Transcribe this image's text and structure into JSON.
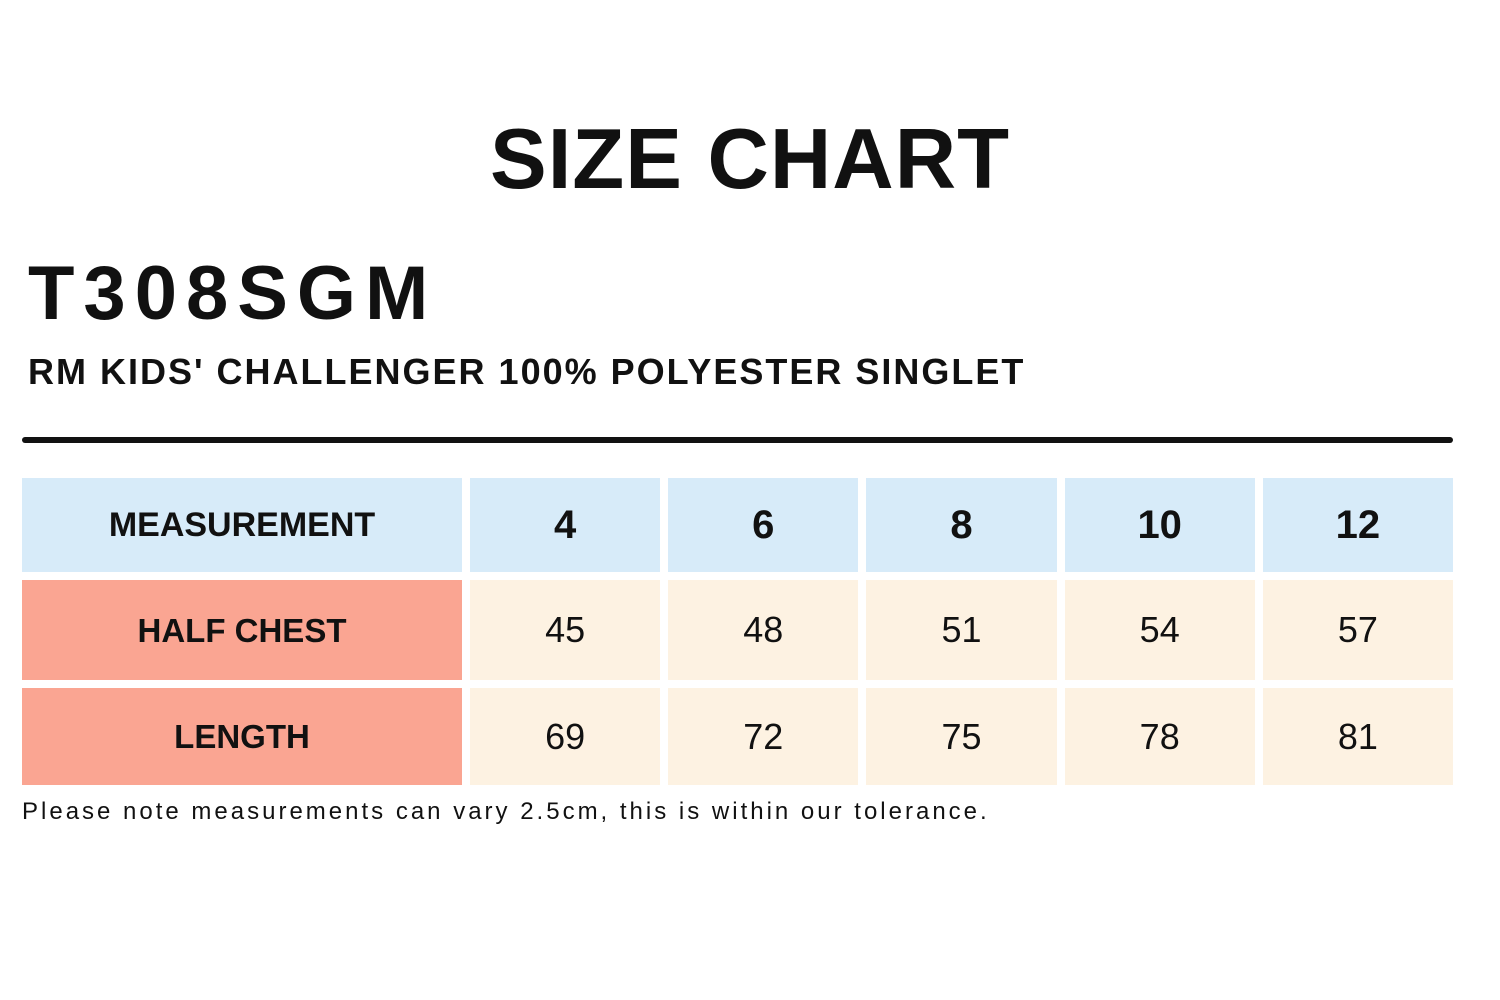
{
  "page": {
    "title": "SIZE CHART",
    "product_code": "T308SGM",
    "product_name": "RM KIDS' CHALLENGER 100% POLYESTER SINGLET",
    "note": "Please note measurements can vary 2.5cm, this is within our tolerance."
  },
  "colors": {
    "background": "#ffffff",
    "header_row_bg": "#d7ebf9",
    "row_label_bg": "#faa592",
    "value_cell_bg": "#fdf2e2",
    "divider": "#111111",
    "text": "#111111"
  },
  "chart_data": {
    "type": "table",
    "title": "SIZE CHART",
    "columns": [
      "MEASUREMENT",
      "4",
      "6",
      "8",
      "10",
      "12"
    ],
    "rows": [
      {
        "label": "HALF CHEST",
        "values": [
          45,
          48,
          51,
          54,
          57
        ]
      },
      {
        "label": "LENGTH",
        "values": [
          69,
          72,
          75,
          78,
          81
        ]
      }
    ],
    "footnote": "Please note measurements can vary 2.5cm, this is within our tolerance."
  }
}
